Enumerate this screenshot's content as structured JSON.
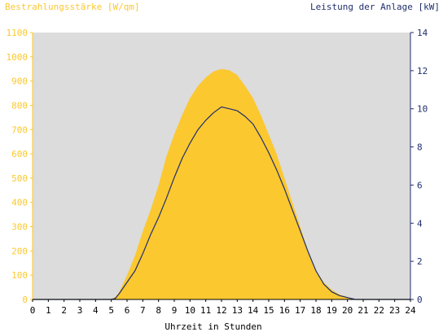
{
  "chart_data": {
    "type": "area",
    "title": "",
    "ylabel_left": "Bestrahlungsstärke [W/qm]",
    "ylabel_right": "Leistung der Anlage [kW]",
    "xlabel": "Uhrzeit in Stunden",
    "xlim": [
      0,
      24
    ],
    "ylim_left": [
      0,
      1100
    ],
    "ylim_right": [
      0,
      14
    ],
    "x_ticks": [
      0,
      1,
      2,
      3,
      4,
      5,
      6,
      7,
      8,
      9,
      10,
      11,
      12,
      13,
      14,
      15,
      16,
      17,
      18,
      19,
      20,
      21,
      22,
      23,
      24
    ],
    "y_ticks_left": [
      0,
      100,
      200,
      300,
      400,
      500,
      600,
      700,
      800,
      900,
      1000,
      1100
    ],
    "y_ticks_right": [
      0,
      2,
      4,
      6,
      8,
      10,
      12,
      14
    ],
    "grid": false,
    "colors": {
      "plot_background": "#dcdcdc",
      "irradiance": "#fbc830",
      "power": "#1f2f6e",
      "left_axis_text": "#fbc830",
      "right_axis_text": "#1f2f6e"
    },
    "series": [
      {
        "axis": "left",
        "style": "area",
        "x": [
          0,
          5,
          5.25,
          5.5,
          6,
          6.5,
          7,
          7.5,
          8,
          8.5,
          9,
          9.5,
          10,
          10.5,
          11,
          11.5,
          12,
          12.5,
          13,
          13.5,
          14,
          14.5,
          15,
          15.5,
          16,
          16.5,
          17,
          17.5,
          18,
          18.5,
          19,
          19.5,
          20,
          20.5,
          21,
          24
        ],
        "values": [
          0,
          0,
          10,
          30,
          100,
          180,
          280,
          370,
          470,
          590,
          680,
          760,
          830,
          880,
          915,
          940,
          950,
          945,
          925,
          880,
          830,
          760,
          680,
          600,
          500,
          400,
          300,
          200,
          120,
          70,
          40,
          20,
          10,
          0,
          0,
          0
        ]
      },
      {
        "axis": "right",
        "style": "line",
        "x": [
          0,
          5,
          5.25,
          5.5,
          6,
          6.5,
          7,
          7.5,
          8,
          8.5,
          9,
          9.5,
          10,
          10.5,
          11,
          11.5,
          12,
          12.5,
          13,
          13.5,
          14,
          14.5,
          15,
          15.5,
          16,
          16.5,
          17,
          17.5,
          18,
          18.5,
          19,
          19.5,
          20,
          20.5,
          21,
          24
        ],
        "values": [
          0,
          0,
          0.05,
          0.3,
          0.9,
          1.5,
          2.4,
          3.4,
          4.3,
          5.3,
          6.4,
          7.4,
          8.2,
          8.9,
          9.4,
          9.8,
          10.1,
          10.0,
          9.9,
          9.6,
          9.2,
          8.5,
          7.7,
          6.8,
          5.8,
          4.7,
          3.6,
          2.5,
          1.5,
          0.8,
          0.4,
          0.2,
          0.1,
          0,
          0,
          0
        ]
      }
    ]
  }
}
